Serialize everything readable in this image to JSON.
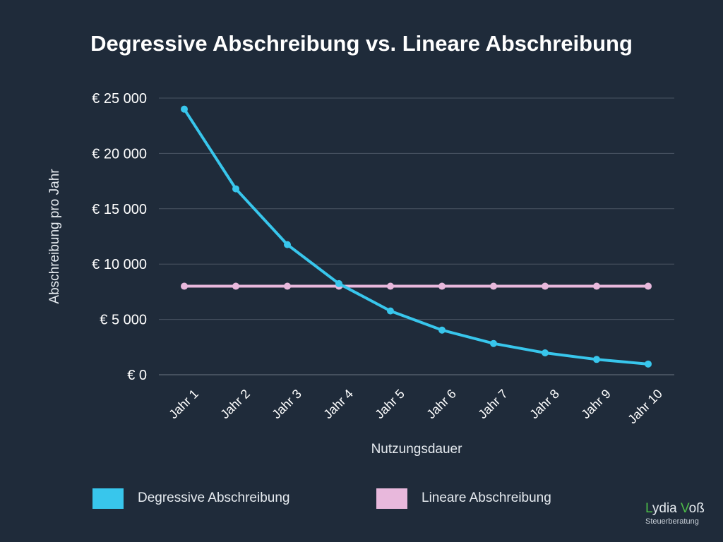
{
  "chart_data": {
    "type": "line",
    "title": "Degressive Abschreibung vs. Lineare Abschreibung",
    "xlabel": "Nutzungsdauer",
    "ylabel": "Abschreibung pro Jahr",
    "categories": [
      "Jahr 1",
      "Jahr 2",
      "Jahr 3",
      "Jahr 4",
      "Jahr 5",
      "Jahr 6",
      "Jahr 7",
      "Jahr 8",
      "Jahr 9",
      "Jahr 10"
    ],
    "series": [
      {
        "name": "Degressive Abschreibung",
        "color": "#38c6ec",
        "values": [
          24000,
          16800,
          11760,
          8232,
          5762,
          4034,
          2824,
          1977,
          1384,
          968
        ]
      },
      {
        "name": "Lineare Abschreibung",
        "color": "#e8b8dc",
        "values": [
          8000,
          8000,
          8000,
          8000,
          8000,
          8000,
          8000,
          8000,
          8000,
          8000
        ]
      }
    ],
    "ylim": [
      0,
      25000
    ],
    "yticks": [
      0,
      5000,
      10000,
      15000,
      20000,
      25000
    ],
    "ytick_labels": [
      "€ 0",
      "€ 5 000",
      "€ 10 000",
      "€ 15 000",
      "€ 20 000",
      "€ 25 000"
    ],
    "grid": true,
    "legend_position": "bottom"
  },
  "legend": [
    {
      "label": "Degressive Abschreibung",
      "color": "#38c6ec"
    },
    {
      "label": "Lineare Abschreibung",
      "color": "#e8b8dc"
    }
  ],
  "brand": {
    "name_first_initial": "L",
    "name_first_rest": "ydia ",
    "name_last_initial": "V",
    "name_last_rest": "oß",
    "subtitle": "Steuerberatung",
    "accent_color": "#4cbb47"
  }
}
